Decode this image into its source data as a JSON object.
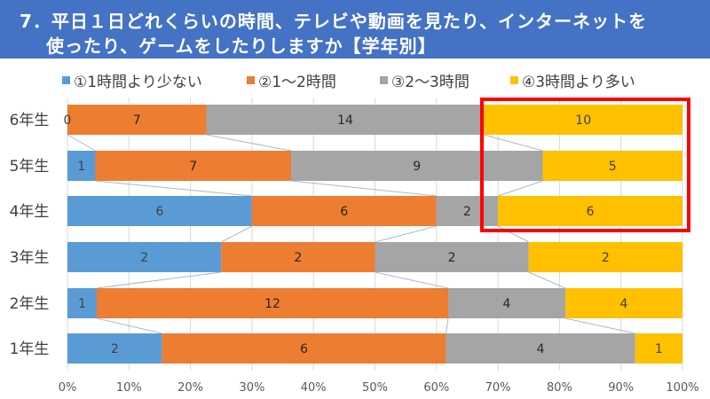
{
  "title": {
    "line1": "7．平日１日どれくらいの時間、テレビや動画を見たり、インターネットを",
    "line2": "使ったり、ゲームをしたりしますか【学年別】"
  },
  "colors": {
    "title_bg": "#4472C4",
    "highlight_box": "#FF0000"
  },
  "chart_data": {
    "type": "bar",
    "orientation": "horizontal",
    "stacking": "percent",
    "title": "7．平日１日どれくらいの時間、テレビや動画を見たり、インターネットを使ったり、ゲームをしたりしますか【学年別】",
    "categories": [
      "6年生",
      "5年生",
      "4年生",
      "3年生",
      "2年生",
      "1年生"
    ],
    "series": [
      {
        "name": "①1時間より少ない",
        "color": "#5B9BD5",
        "values": [
          0,
          1,
          6,
          2,
          1,
          2
        ]
      },
      {
        "name": "②1～2時間",
        "color": "#ED7D31",
        "values": [
          7,
          7,
          6,
          2,
          12,
          6
        ]
      },
      {
        "name": "③2～3時間",
        "color": "#A5A5A5",
        "values": [
          14,
          9,
          2,
          2,
          4,
          4
        ]
      },
      {
        "name": "④3時間より多い",
        "color": "#FFC000",
        "values": [
          10,
          5,
          6,
          2,
          4,
          1
        ]
      }
    ],
    "xlim": [
      0,
      100
    ],
    "xticks": [
      "0%",
      "10%",
      "20%",
      "30%",
      "40%",
      "50%",
      "60%",
      "70%",
      "80%",
      "90%",
      "100%"
    ],
    "xlabel": "",
    "ylabel": "",
    "grid": true,
    "series_lines": true,
    "legend_position": "top",
    "annotation": "red box highlighting ④3時間より多い for 6年生, 5年生, 4年生"
  }
}
